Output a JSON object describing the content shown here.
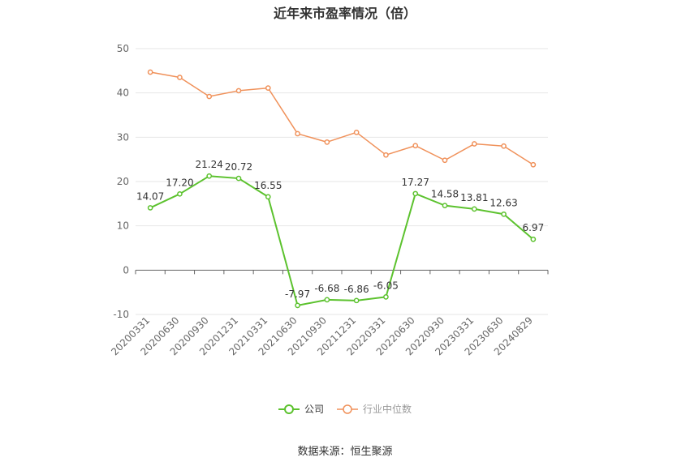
{
  "title": "近年来市盈率情况（倍）",
  "source": "数据来源：恒生聚源",
  "colors": {
    "company": "#5cc22e",
    "industry": "#f0915a",
    "axis": "#666666",
    "grid": "#e6e6e6"
  },
  "legend": {
    "company_label": "公司",
    "industry_label": "行业中位数"
  },
  "chart_data": {
    "type": "line",
    "title": "近年来市盈率情况（倍）",
    "categories": [
      "20200331",
      "20200630",
      "20200930",
      "20201231",
      "20210331",
      "20210630",
      "20210930",
      "20211231",
      "20220331",
      "20220630",
      "20220930",
      "20230331",
      "20230630",
      "20240829"
    ],
    "series": [
      {
        "name": "公司",
        "values": [
          14.07,
          17.2,
          21.24,
          20.72,
          16.55,
          -7.97,
          -6.68,
          -6.86,
          -6.05,
          17.27,
          14.58,
          13.81,
          12.63,
          6.97
        ],
        "labels": [
          "14.07",
          "17.20",
          "21.24",
          "20.72",
          "16.55",
          "-7.97",
          "-6.68",
          "-6.86",
          "-6.05",
          "17.27",
          "14.58",
          "13.81",
          "12.63",
          "6.97"
        ]
      },
      {
        "name": "行业中位数",
        "values": [
          44.7,
          43.5,
          39.2,
          40.5,
          41.1,
          30.8,
          28.9,
          31.1,
          26.0,
          28.1,
          24.8,
          28.5,
          28.0,
          23.8
        ]
      }
    ],
    "yticks": [
      -10,
      0,
      10,
      20,
      30,
      40,
      50
    ],
    "ylim": [
      -10,
      50
    ],
    "grid": true,
    "legend_position": "bottom"
  }
}
